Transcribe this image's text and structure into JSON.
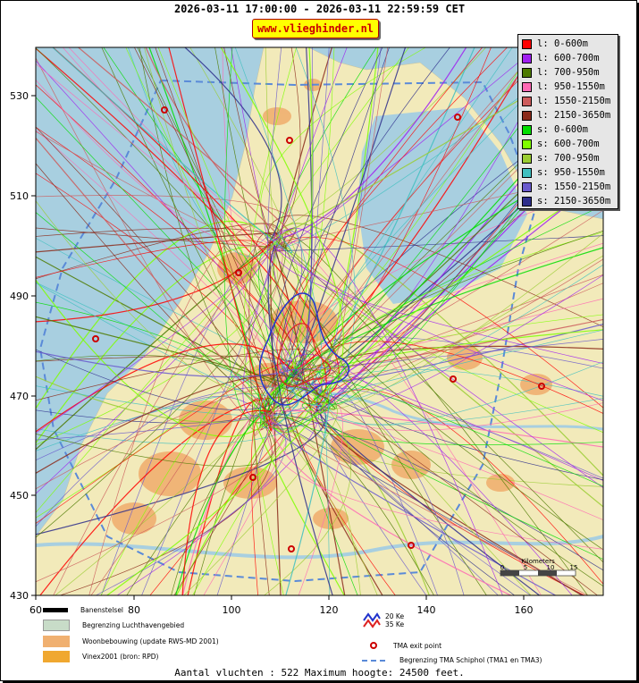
{
  "header": {
    "title": "2026-03-11 17:00:00 - 2026-03-11 22:59:59 CET",
    "site_badge": "www.vlieghinder.nl"
  },
  "axes": {
    "x_ticks": [
      "60",
      "80",
      "100",
      "120",
      "140",
      "160"
    ],
    "y_ticks": [
      "530",
      "510",
      "490",
      "470",
      "450",
      "430"
    ]
  },
  "legend": [
    {
      "label": "l: 0-600m",
      "color": "#ff0000"
    },
    {
      "label": "l: 600-700m",
      "color": "#a020f0"
    },
    {
      "label": "l: 700-950m",
      "color": "#4d7a00"
    },
    {
      "label": "l: 950-1550m",
      "color": "#ff69b4"
    },
    {
      "label": "l: 1550-2150m",
      "color": "#cd5c5c"
    },
    {
      "label": "l: 2150-3650m",
      "color": "#8b2a1a"
    },
    {
      "label": "s: 0-600m",
      "color": "#00dd00"
    },
    {
      "label": "s: 600-700m",
      "color": "#7fff00"
    },
    {
      "label": "s: 700-950m",
      "color": "#9acd32"
    },
    {
      "label": "s: 950-1550m",
      "color": "#40c0c0"
    },
    {
      "label": "s: 1550-2150m",
      "color": "#6a5acd"
    },
    {
      "label": "s: 2150-3650m",
      "color": "#2e2e8b"
    }
  ],
  "map_legend": {
    "runways": "Banenstelsel",
    "airport_boundary": "Begrenzing Luchthavengebied",
    "housing": "Woonbebouwing (update RWS-MD 2001)",
    "vinex": "Vinex2001 (bron: RPD)",
    "ke20": "20 Ke",
    "ke35": "35 Ke",
    "tma_exit": "TMA exit point",
    "tma_boundary": "Begrenzing TMA Schiphol  (TMA1 en TMA3)"
  },
  "scale": {
    "title": "Kilometers",
    "labels": [
      "0",
      "5",
      "10",
      "15"
    ]
  },
  "footer": "Aantal vluchten : 522 Maximum hoogte: 24500 feet.",
  "colors": {
    "water": "#a8cfe0",
    "land": "#f2eaba",
    "urban": "#f0b070",
    "tma": "#5a8ad8"
  }
}
